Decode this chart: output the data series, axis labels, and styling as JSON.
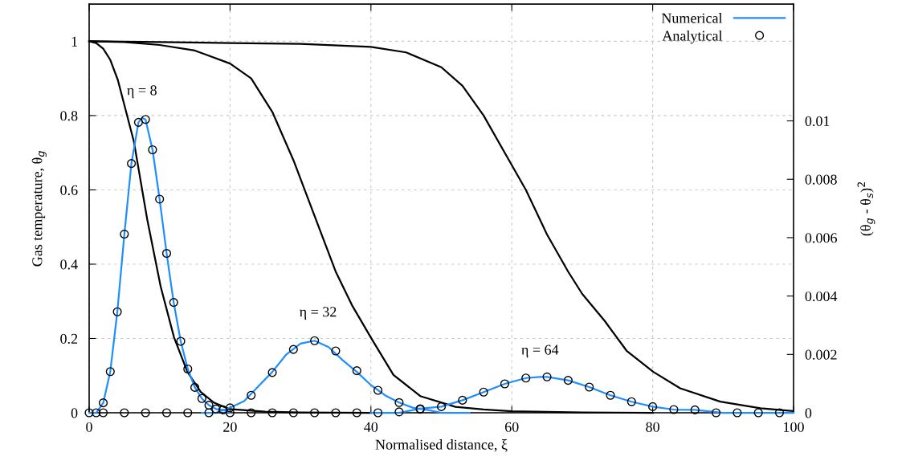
{
  "chart_data": {
    "type": "line",
    "xlabel": "Normalised distance, ξ",
    "ylabel": "Gas temperature, θ$_{g}$",
    "y2label": "(θ$_{g}$ - θ$_{s}$)$^{2}$",
    "xlim": [
      0,
      100
    ],
    "xticks": [
      0,
      20,
      40,
      60,
      80,
      100
    ],
    "ylim": [
      0,
      1.1
    ],
    "yticks": [
      0,
      0.2,
      0.4,
      0.6,
      0.8,
      1
    ],
    "y2lim": [
      0,
      0.014
    ],
    "y2ticks": [
      0,
      0.002,
      0.004,
      0.006,
      0.008,
      0.01
    ],
    "grid": true,
    "legend": "top right",
    "series": [
      {
        "color": "#000000",
        "axis": "y",
        "line_style": "solid",
        "marker": "none",
        "x": [
          0,
          1,
          2,
          3,
          4.07,
          6.35,
          8.24,
          10.15,
          12.05,
          13.95,
          15.85,
          17.75,
          19.9,
          25,
          30,
          40
        ],
        "values": [
          1,
          0.995,
          0.98,
          0.95,
          0.896,
          0.73,
          0.521,
          0.34,
          0.203,
          0.11,
          0.056,
          0.027,
          0.01,
          0.003,
          0.001,
          0
        ]
      },
      {
        "color": "#000000",
        "axis": "y",
        "line_style": "solid",
        "marker": "none",
        "x": [
          0,
          5,
          10,
          15,
          20,
          23,
          26,
          29,
          32,
          35,
          37.3,
          40.2,
          43.2,
          47,
          52,
          56,
          60,
          70,
          80
        ],
        "values": [
          1,
          0.998,
          0.99,
          0.975,
          0.94,
          0.9,
          0.81,
          0.68,
          0.53,
          0.38,
          0.29,
          0.196,
          0.102,
          0.045,
          0.016,
          0.009,
          0.004,
          0.001,
          0
        ]
      },
      {
        "color": "#000000",
        "axis": "y",
        "line_style": "solid",
        "marker": "none",
        "x": [
          0,
          10,
          20,
          30,
          40,
          45,
          50,
          53,
          56,
          59,
          62,
          65,
          68,
          70,
          73.2,
          76.3,
          80.1,
          83.9,
          89.6,
          95.3,
          99.8
        ],
        "values": [
          1,
          0.998,
          0.995,
          0.993,
          0.985,
          0.97,
          0.93,
          0.88,
          0.8,
          0.7,
          0.6,
          0.48,
          0.38,
          0.32,
          0.247,
          0.167,
          0.11,
          0.066,
          0.03,
          0.012,
          0.005
        ]
      },
      {
        "name": "Numerical",
        "color": "#1f8fff",
        "axis": "y2",
        "line_style": "solid",
        "marker": "none",
        "x": [
          0,
          1,
          2,
          3,
          4,
          5,
          6,
          7,
          7.5,
          8,
          9,
          10,
          11,
          12,
          13,
          14,
          15,
          16,
          17,
          18,
          19,
          20
        ],
        "values": [
          0,
          0,
          0.00034,
          0.00141,
          0.00346,
          0.00612,
          0.00854,
          0.00995,
          0.0101,
          0.01005,
          0.00901,
          0.00732,
          0.00546,
          0.00378,
          0.00245,
          0.0015,
          0.00087,
          0.00049,
          0.00026,
          0.00013,
          0.0001,
          0
        ]
      },
      {
        "color": "#1f8fff",
        "axis": "y2",
        "line_style": "solid",
        "marker": "none",
        "x": [
          16,
          18,
          20,
          22,
          24,
          26,
          28,
          30,
          32,
          34,
          36,
          38,
          40,
          42,
          44,
          46,
          48,
          50,
          54
        ],
        "values": [
          0,
          0,
          0.00017,
          0.0004,
          0.0009,
          0.0014,
          0.002,
          0.00237,
          0.00247,
          0.00225,
          0.0018,
          0.0014,
          0.00095,
          0.0006,
          0.00035,
          0.00017,
          0.0001,
          0,
          0
        ]
      },
      {
        "color": "#1f8fff",
        "axis": "y2",
        "line_style": "solid",
        "marker": "none",
        "x": [
          40,
          44,
          47,
          50,
          53,
          56,
          59,
          62,
          64,
          65,
          68,
          71,
          74,
          77,
          80,
          83,
          86,
          90,
          100
        ],
        "values": [
          0,
          0,
          0.00014,
          0.00021,
          0.00043,
          0.00071,
          0.00099,
          0.00119,
          0.00123,
          0.00123,
          0.00111,
          0.00088,
          0.0006,
          0.00038,
          0.00021,
          0.00011,
          0.0001,
          0,
          0
        ]
      },
      {
        "type": "scatter",
        "name": "Analytical",
        "color": "#000000",
        "axis": "y2",
        "marker": "circle",
        "x": [
          0,
          1,
          2,
          3,
          4,
          5,
          6,
          7,
          8,
          9,
          10,
          11,
          12,
          13,
          14,
          15,
          16,
          17,
          18,
          19,
          20,
          23,
          26,
          29,
          32,
          35,
          38,
          41,
          44,
          47,
          2,
          5,
          8,
          11,
          14,
          17,
          20,
          23,
          26,
          29,
          32,
          35,
          38,
          41,
          44,
          47,
          50,
          53,
          56,
          59,
          62,
          65,
          68,
          71,
          74,
          77,
          80,
          83,
          86,
          89,
          92,
          95,
          98
        ],
        "values": [
          0,
          0,
          0.00034,
          0.00141,
          0.00346,
          0.00612,
          0.00854,
          0.00995,
          0.01005,
          0.00901,
          0.00732,
          0.00546,
          0.00378,
          0.00245,
          0.0015,
          0.00087,
          0.00049,
          0.00026,
          0.00013,
          0.0001,
          0.00017,
          0.0006,
          0.00138,
          0.00217,
          0.00247,
          0.00212,
          0.00144,
          0.00077,
          0.00035,
          0.00012,
          0,
          0,
          0,
          0,
          0,
          0,
          0,
          0,
          0,
          0,
          0,
          0,
          0,
          0,
          3e-05,
          0.00014,
          0.00021,
          0.00043,
          0.00071,
          0.00099,
          0.00119,
          0.00123,
          0.00111,
          0.00088,
          0.0006,
          0.00038,
          0.00021,
          0.00011,
          0.0001,
          0,
          0,
          0,
          0
        ]
      }
    ],
    "annotations": [
      "η = 8",
      "η = 32",
      "η = 64"
    ]
  }
}
